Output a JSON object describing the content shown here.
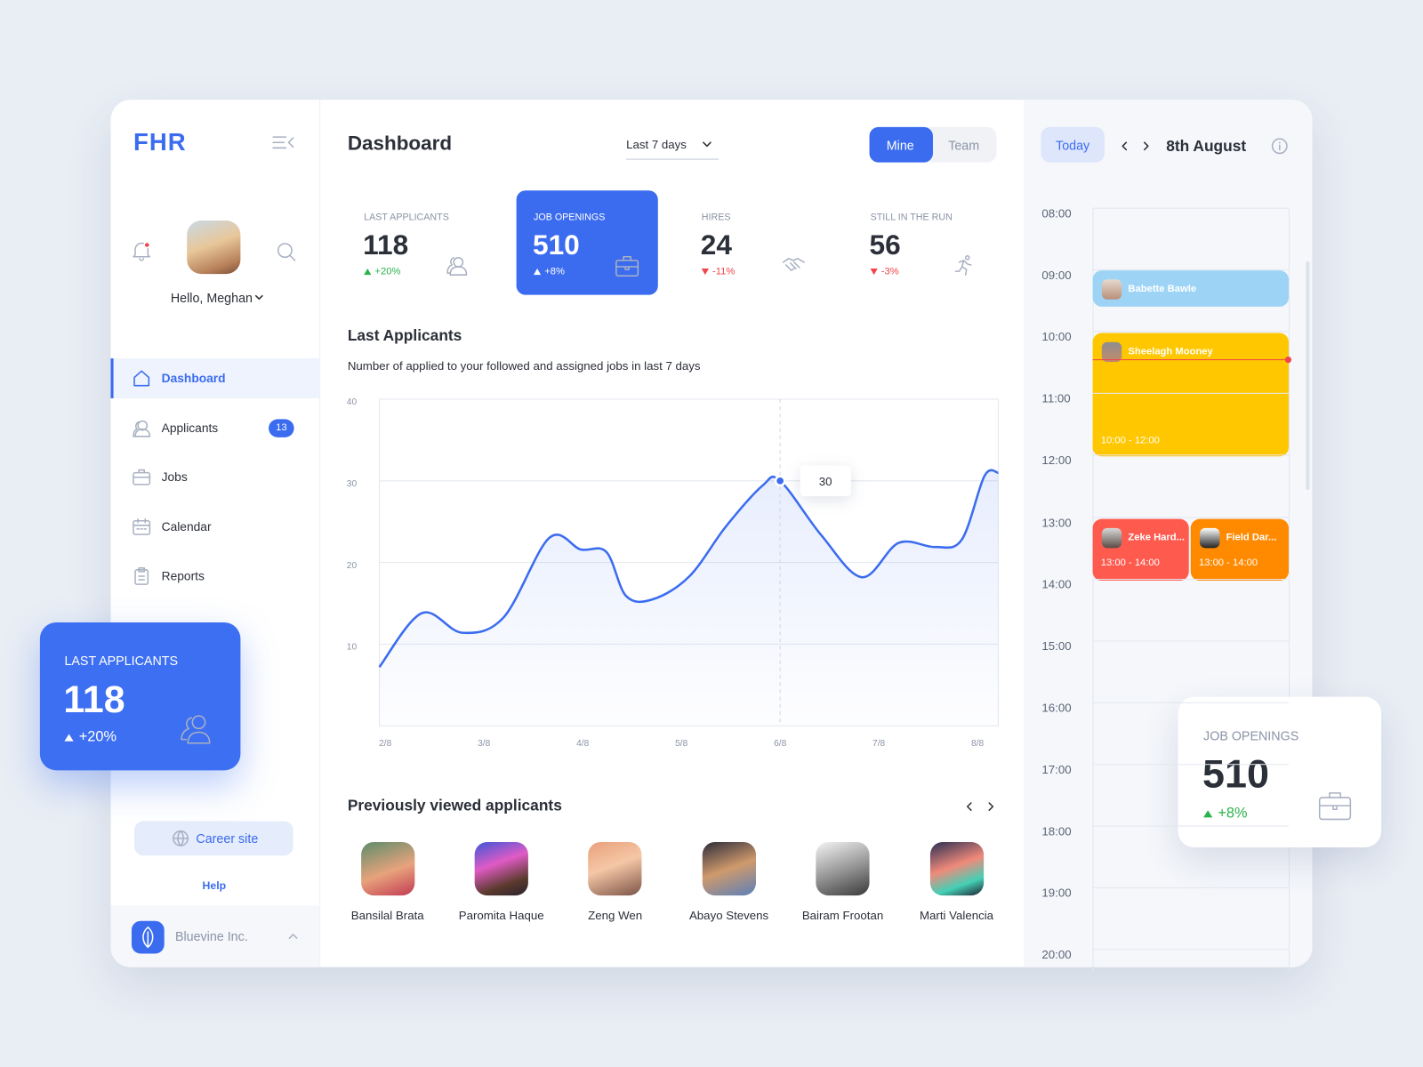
{
  "brand": "FHR",
  "sidebar": {
    "greeting": "Hello, Meghan",
    "nav": [
      {
        "label": "Dashboard"
      },
      {
        "label": "Applicants",
        "badge": 13
      },
      {
        "label": "Jobs"
      },
      {
        "label": "Calendar"
      },
      {
        "label": "Reports"
      }
    ],
    "career_site": "Career site",
    "help": "Help",
    "company": "Bluevine Inc."
  },
  "header": {
    "title": "Dashboard",
    "period": "Last 7 days",
    "toggle": [
      "Mine",
      "Team"
    ]
  },
  "stats": [
    {
      "label": "LAST APPLICANTS",
      "value": 118,
      "change": "+20%"
    },
    {
      "label": "JOB OPENINGS",
      "value": 510,
      "change": "+8%"
    },
    {
      "label": "HIRES",
      "value": 24,
      "change": "-11%"
    },
    {
      "label": "STILL IN THE RUN",
      "value": 56,
      "change": "-3%"
    }
  ],
  "chart_data": {
    "type": "line",
    "title": "Last Applicants",
    "subtitle": "Number of applied to your followed and assigned jobs in last 7 days",
    "x": [
      1.94,
      2.37,
      2.78,
      3.2,
      3.66,
      3.98,
      4.24,
      4.44,
      4.71,
      5.08,
      5.45,
      5.82,
      6,
      6.42,
      6.83,
      7.2,
      7.57,
      7.84,
      8.07,
      8.21
    ],
    "values": [
      7.2,
      13.8,
      11.4,
      13.3,
      23,
      21.6,
      21.3,
      15.9,
      15.5,
      18.3,
      24.4,
      29.4,
      30,
      23.3,
      18.2,
      22.4,
      21.9,
      22.8,
      30.6,
      31
    ],
    "color": "#3b6cf0",
    "xlim": [
      1.94,
      8.21
    ],
    "xticks": [
      {
        "value": 2,
        "label": "2/8"
      },
      {
        "value": 3,
        "label": "3/8"
      },
      {
        "value": 4,
        "label": "4/8"
      },
      {
        "value": 5,
        "label": "5/8"
      },
      {
        "value": 6,
        "label": "6/8"
      },
      {
        "value": 7,
        "label": "7/8"
      },
      {
        "value": 8,
        "label": "8/8"
      }
    ],
    "ylim": [
      0,
      40
    ],
    "yticks": [
      10,
      20,
      30,
      40
    ],
    "grid": true
  },
  "applicants_section": {
    "title": "Previously viewed applicants",
    "people": [
      "Bansilal Brata",
      "Paromita Haque",
      "Zeng Wen",
      "Abayo Stevens",
      "Bairam Frootan",
      "Marti Valencia"
    ]
  },
  "calendar": {
    "today": "Today",
    "date": "8th August",
    "hours": [
      "08:00",
      "09:00",
      "10:00",
      "11:00",
      "12:00",
      "13:00",
      "14:00",
      "15:00",
      "16:00",
      "17:00",
      "18:00",
      "19:00",
      "20:00"
    ],
    "events": [
      {
        "name": "Babette Bawle"
      },
      {
        "name": "Sheelagh Mooney",
        "time": "10:00 - 12:00"
      },
      {
        "name": "Zeke Hard...",
        "time": "13:00 - 14:00"
      },
      {
        "name": "Field Dar...",
        "time": "13:00 - 14:00"
      }
    ]
  }
}
